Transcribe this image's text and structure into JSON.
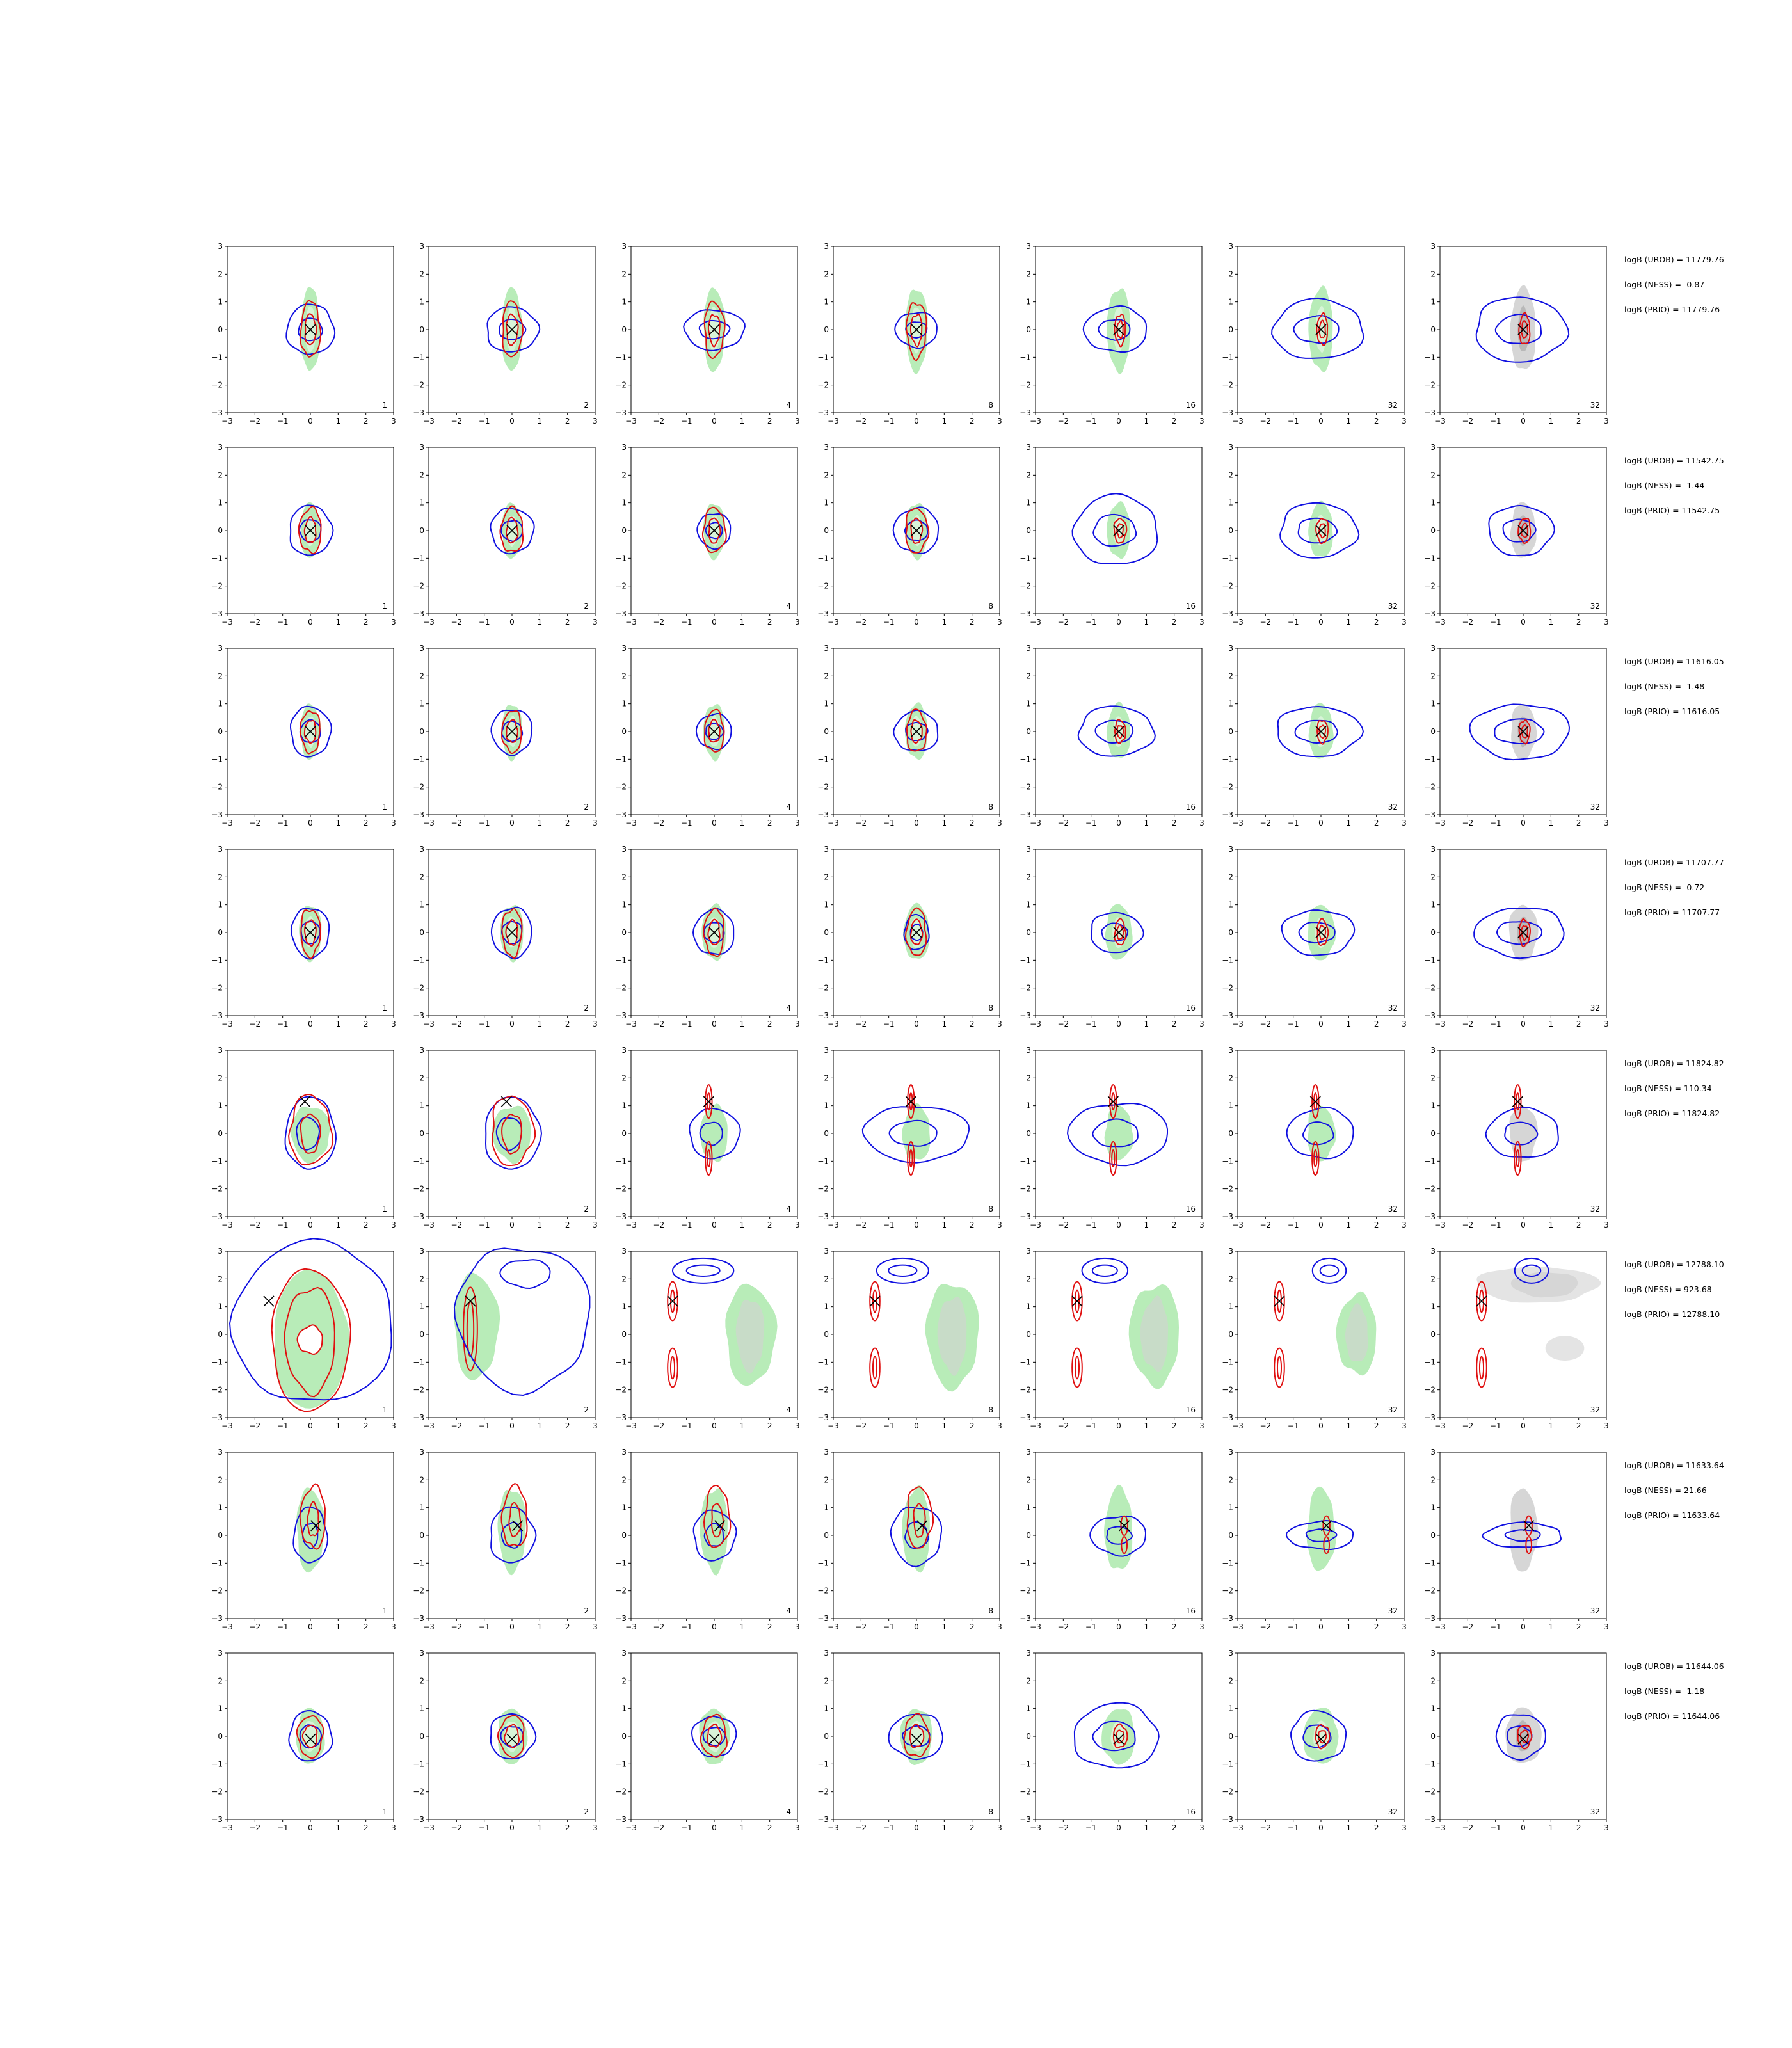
{
  "chart_data": {
    "type": "contour-grid",
    "rows": 8,
    "cols": 7,
    "xlim": [
      -3,
      3
    ],
    "ylim": [
      -3,
      3
    ],
    "ticks": [
      -3,
      -2,
      -1,
      0,
      1,
      2,
      3
    ],
    "tick_labels": [
      "−3",
      "−2",
      "−1",
      "0",
      "1",
      "2",
      "3"
    ],
    "panel_labels": [
      "1",
      "2",
      "4",
      "8",
      "16",
      "32",
      "32"
    ],
    "colors": {
      "blue_contour": "#1010e0",
      "red_contour": "#e01010",
      "green_fill": "#b8ecb8",
      "green_inner": "#d8f4d8",
      "grey_fill": "#d6d6d6",
      "grey_inner": "#b8b8b8",
      "marker": "#000000"
    },
    "row_annotations": [
      {
        "urob": "logB (UROB) = 11779.76",
        "ness": "logB (NESS) = -0.87",
        "prio": "logB (PRIO) = 11779.76"
      },
      {
        "urob": "logB (UROB) = 11542.75",
        "ness": "logB (NESS) = -1.44",
        "prio": "logB (PRIO) = 11542.75"
      },
      {
        "urob": "logB (UROB) = 11616.05",
        "ness": "logB (NESS) = -1.48",
        "prio": "logB (PRIO) = 11616.05"
      },
      {
        "urob": "logB (UROB) = 11707.77",
        "ness": "logB (NESS) = -0.72",
        "prio": "logB (PRIO) = 11707.77"
      },
      {
        "urob": "logB (UROB) = 11824.82",
        "ness": "logB (NESS) = 110.34",
        "prio": "logB (PRIO) = 11824.82"
      },
      {
        "urob": "logB (UROB) = 12788.10",
        "ness": "logB (NESS) = 923.68",
        "prio": "logB (PRIO) = 12788.10"
      },
      {
        "urob": "logB (UROB) = 11633.64",
        "ness": "logB (NESS) = 21.66",
        "prio": "logB (PRIO) = 11633.64"
      },
      {
        "urob": "logB (UROB) = 11644.06",
        "ness": "logB (NESS) = -1.18",
        "prio": "logB (PRIO) = 11644.06"
      }
    ],
    "row_markers": [
      [
        0,
        0
      ],
      [
        0,
        0
      ],
      [
        0,
        0
      ],
      [
        0,
        0
      ],
      [
        -0.2,
        1.15
      ],
      [
        -1.5,
        1.2
      ],
      [
        0.2,
        0.35
      ],
      [
        0,
        -0.1
      ]
    ],
    "standard_rows": [
      {
        "row": 0,
        "green": [
          0.35,
          1.5
        ],
        "red": [
          [
            0.35,
            1.0
          ],
          [
            0.2,
            0.55
          ]
        ],
        "blue_scale": [
          1.0,
          0.9,
          0.8,
          0.7,
          0.9,
          1.2,
          1.3
        ],
        "blue_aspect": [
          0.95,
          1.15,
          1.5,
          1.2,
          1.4,
          1.5,
          1.4
        ]
      },
      {
        "row": 1,
        "green": [
          0.35,
          1.0
        ],
        "red": [
          [
            0.4,
            0.8
          ],
          [
            0.2,
            0.45
          ]
        ],
        "blue_scale": [
          1.0,
          0.9,
          0.7,
          0.9,
          1.4,
          1.1,
          1.0
        ],
        "blue_aspect": [
          0.85,
          0.95,
          0.95,
          1.0,
          1.2,
          1.4,
          1.3
        ]
      },
      {
        "row": 2,
        "green": [
          0.35,
          1.0
        ],
        "red": [
          [
            0.35,
            0.75
          ],
          [
            0.2,
            0.4
          ]
        ],
        "blue_scale": [
          1.0,
          0.9,
          0.7,
          0.8,
          1.0,
          1.0,
          1.1
        ],
        "blue_aspect": [
          0.8,
          0.9,
          1.0,
          1.1,
          1.5,
          1.7,
          1.8
        ]
      },
      {
        "row": 3,
        "green": [
          0.4,
          1.0
        ],
        "red": [
          [
            0.35,
            0.85
          ],
          [
            0.2,
            0.45
          ]
        ],
        "blue_scale": [
          1.0,
          1.0,
          0.9,
          0.7,
          0.8,
          0.9,
          1.0
        ],
        "blue_aspect": [
          0.75,
          0.8,
          0.9,
          0.7,
          1.3,
          1.6,
          1.8
        ]
      },
      {
        "row": 7,
        "green": [
          0.5,
          1.0
        ],
        "red": [
          [
            0.45,
            0.75
          ],
          [
            0.25,
            0.4
          ]
        ],
        "blue_scale": [
          1.0,
          0.9,
          0.8,
          0.9,
          1.3,
          1.0,
          0.9
        ],
        "blue_aspect": [
          0.85,
          1.0,
          1.1,
          1.2,
          1.3,
          1.1,
          1.1
        ]
      }
    ]
  }
}
